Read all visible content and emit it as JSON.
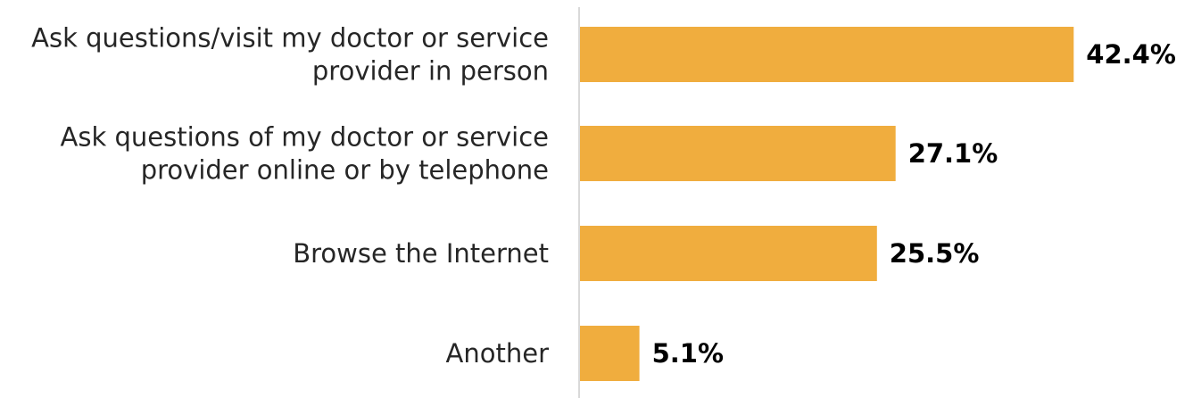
{
  "chart_data": {
    "type": "bar",
    "orientation": "horizontal",
    "categories": [
      [
        "Ask questions/visit my doctor or service",
        "provider in person"
      ],
      [
        "Ask questions of my doctor or service",
        "provider online or by telephone"
      ],
      [
        "Browse the Internet"
      ],
      [
        "Another"
      ]
    ],
    "values": [
      42.4,
      27.1,
      25.5,
      5.1
    ],
    "value_labels": [
      "42.4%",
      "27.1%",
      "25.5%",
      "5.1%"
    ],
    "xlim": [
      0,
      50
    ],
    "grid": false,
    "colors": {
      "bar": "#F0AD3E",
      "axis": "#D9D9D9"
    }
  }
}
